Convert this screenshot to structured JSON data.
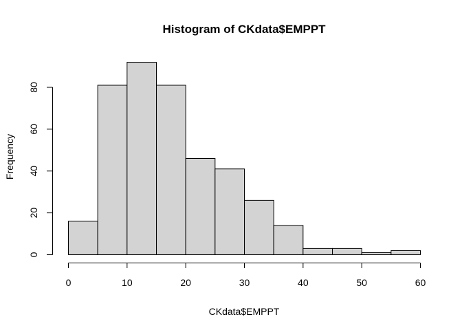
{
  "chart_data": {
    "type": "bar",
    "title": "Histogram of CKdata$EMPPT",
    "xlabel": "CKdata$EMPPT",
    "ylabel": "Frequency",
    "bins": [
      {
        "start": 0,
        "end": 5,
        "count": 16
      },
      {
        "start": 5,
        "end": 10,
        "count": 81
      },
      {
        "start": 10,
        "end": 15,
        "count": 92
      },
      {
        "start": 15,
        "end": 20,
        "count": 81
      },
      {
        "start": 20,
        "end": 25,
        "count": 46
      },
      {
        "start": 25,
        "end": 30,
        "count": 41
      },
      {
        "start": 30,
        "end": 35,
        "count": 26
      },
      {
        "start": 35,
        "end": 40,
        "count": 14
      },
      {
        "start": 40,
        "end": 45,
        "count": 3
      },
      {
        "start": 45,
        "end": 50,
        "count": 3
      },
      {
        "start": 50,
        "end": 55,
        "count": 1
      },
      {
        "start": 55,
        "end": 60,
        "count": 2
      }
    ],
    "xlim": [
      0,
      60
    ],
    "ylim": [
      0,
      92
    ],
    "x_ticks": [
      0,
      10,
      20,
      30,
      40,
      50,
      60
    ],
    "y_ticks": [
      0,
      20,
      40,
      60,
      80
    ],
    "bar_color": "#d3d3d3",
    "grid": false,
    "legend": "none"
  }
}
